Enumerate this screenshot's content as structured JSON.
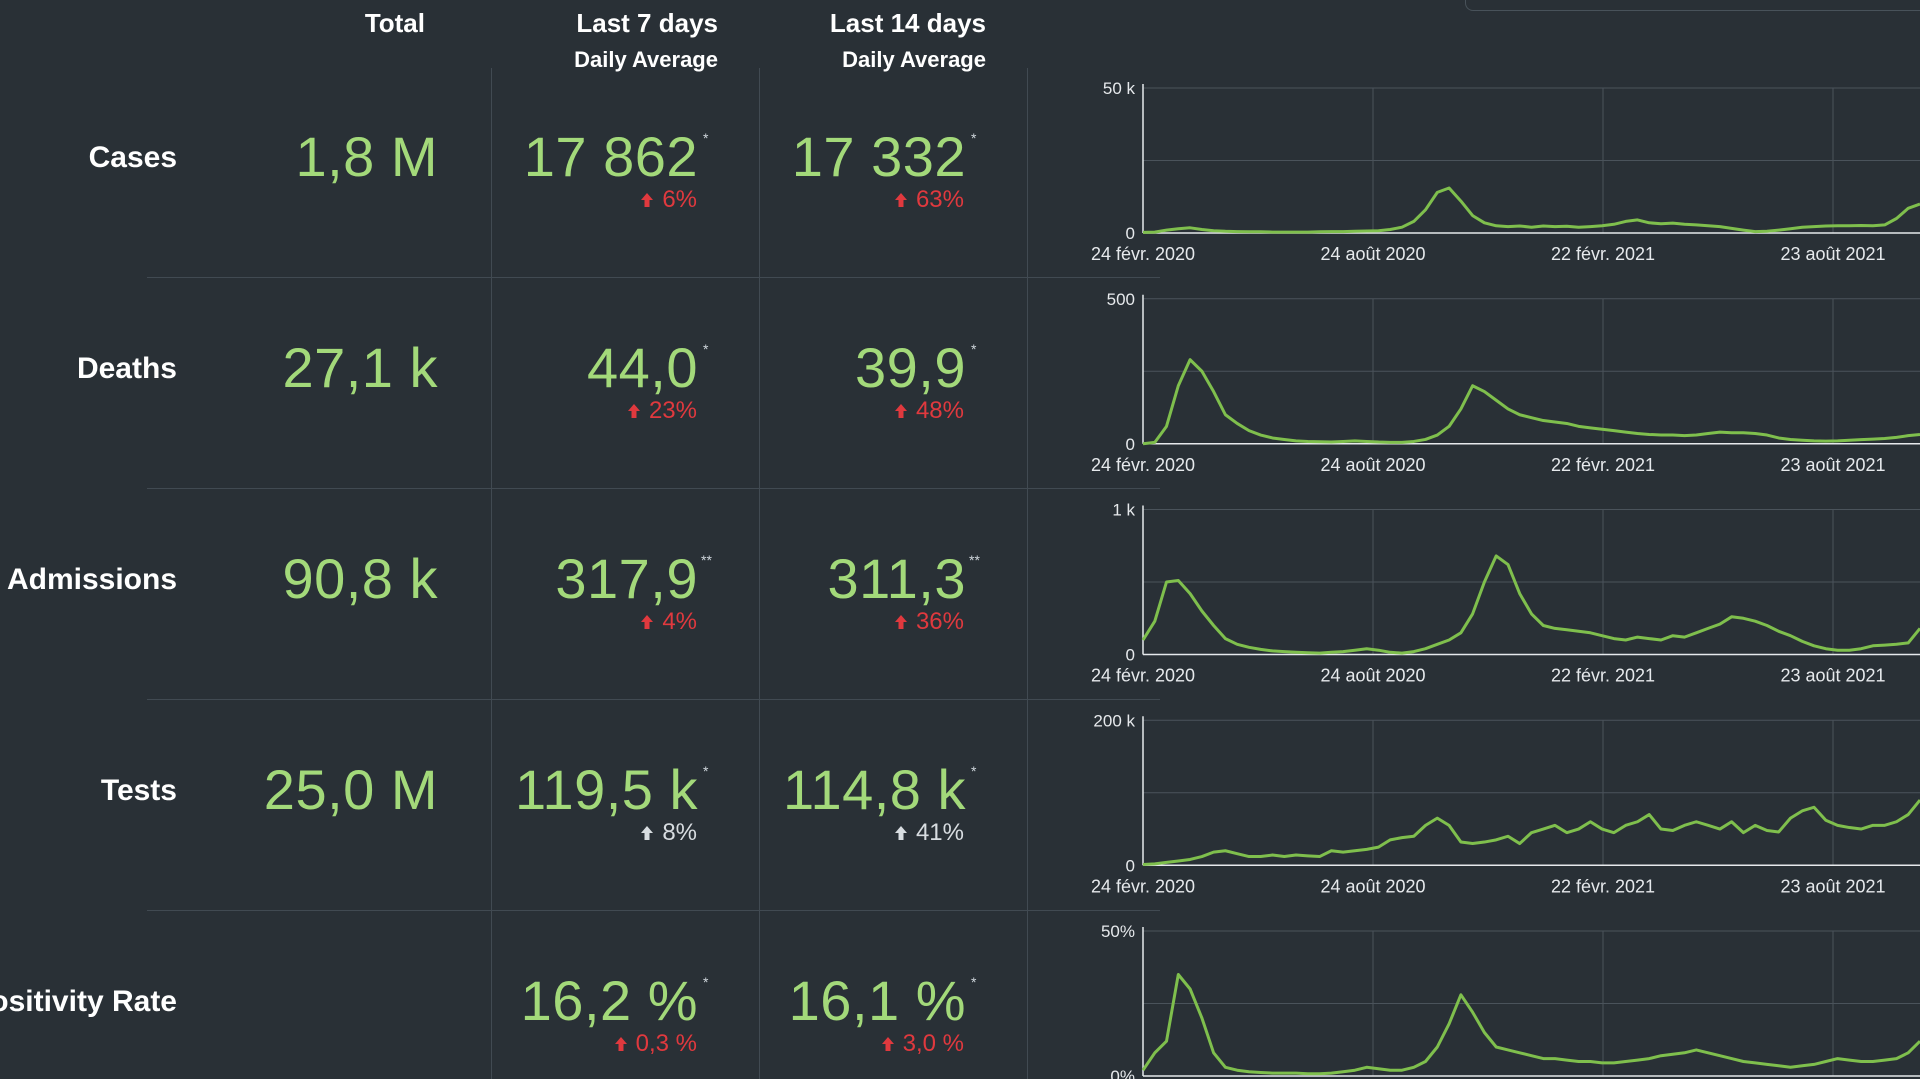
{
  "headers": {
    "total": "Total",
    "last7": "Last 7 days",
    "last7_sub": "Daily Average",
    "last14": "Last 14 days",
    "last14_sub": "Daily Average"
  },
  "rows": [
    {
      "label": "Cases",
      "total": "1,8 M",
      "avg7": "17 862",
      "avg7_mark": "*",
      "chg7": "6%",
      "chg7_color": "red",
      "avg14": "17 332",
      "avg14_mark": "*",
      "chg14": "63%",
      "chg14_color": "red"
    },
    {
      "label": "Deaths",
      "total": "27,1 k",
      "avg7": "44,0",
      "avg7_mark": "*",
      "chg7": "23%",
      "chg7_color": "red",
      "avg14": "39,9",
      "avg14_mark": "*",
      "chg14": "48%",
      "chg14_color": "red"
    },
    {
      "label": "al Admissions",
      "total": "90,8 k",
      "avg7": "317,9",
      "avg7_mark": "**",
      "chg7": "4%",
      "chg7_color": "red",
      "avg14": "311,3",
      "avg14_mark": "**",
      "chg14": "36%",
      "chg14_color": "red"
    },
    {
      "label": "Tests",
      "total": "25,0 M",
      "avg7": "119,5 k",
      "avg7_mark": "*",
      "chg7": "8%",
      "chg7_color": "grey",
      "avg14": "114,8 k",
      "avg14_mark": "*",
      "chg14": "41%",
      "chg14_color": "grey"
    },
    {
      "label": "ositivity Rate",
      "total": "",
      "avg7": "16,2 %",
      "avg7_mark": "*",
      "chg7": "0,3 %",
      "chg7_color": "red",
      "avg14": "16,1 %",
      "avg14_mark": "*",
      "chg14": "3,0 %",
      "chg14_color": "red"
    }
  ],
  "colors": {
    "background": "#293036",
    "value_green": "#a3d97a",
    "line_green": "#7fbf4d",
    "increase_red": "#e0393e",
    "neutral_grey": "#d8dde1"
  },
  "chart_data": [
    {
      "type": "line",
      "series": [
        {
          "values": [
            0.2,
            0.3,
            1.0,
            1.5,
            1.8,
            1.2,
            0.8,
            0.6,
            0.5,
            0.4,
            0.4,
            0.3,
            0.3,
            0.3,
            0.3,
            0.4,
            0.5,
            0.5,
            0.6,
            0.7,
            0.8,
            1.2,
            2,
            4,
            8,
            14,
            15.5,
            11,
            6,
            3.5,
            2.5,
            2.2,
            2.4,
            2.0,
            2.4,
            2.2,
            2.3,
            2.0,
            2.2,
            2.5,
            3.0,
            4.0,
            4.5,
            3.5,
            3.2,
            3.4,
            3.0,
            2.8,
            2.5,
            2.2,
            1.6,
            1.0,
            0.5,
            0.6,
            1.0,
            1.5,
            2.0,
            2.2,
            2.4,
            2.5,
            2.5,
            2.6,
            2.5,
            2.8,
            5,
            8.5,
            10
          ]
        }
      ],
      "y_ticks": [
        "0",
        "50 k"
      ],
      "ylim": [
        0,
        50000
      ],
      "x_ticks": [
        "24 févr. 2020",
        "24 août 2020",
        "22 févr. 2021",
        "23 août 2021"
      ],
      "grid": true
    },
    {
      "type": "line",
      "series": [
        {
          "values": [
            0,
            5,
            60,
            200,
            290,
            250,
            180,
            100,
            70,
            45,
            30,
            20,
            15,
            10,
            8,
            7,
            6,
            8,
            10,
            8,
            6,
            5,
            5,
            8,
            15,
            30,
            60,
            120,
            200,
            180,
            150,
            120,
            100,
            90,
            80,
            75,
            70,
            60,
            55,
            50,
            45,
            40,
            35,
            32,
            30,
            30,
            28,
            30,
            35,
            40,
            38,
            38,
            35,
            30,
            20,
            15,
            12,
            10,
            9,
            10,
            12,
            14,
            16,
            18,
            22,
            28,
            32
          ]
        }
      ],
      "y_ticks": [
        "0",
        "500"
      ],
      "ylim": [
        0,
        500
      ],
      "x_ticks": [
        "24 févr. 2020",
        "24 août 2020",
        "22 févr. 2021",
        "23 août 2021"
      ],
      "grid": true
    },
    {
      "type": "line",
      "series": [
        {
          "values": [
            100,
            230,
            500,
            510,
            420,
            300,
            200,
            110,
            70,
            50,
            35,
            25,
            20,
            15,
            12,
            10,
            15,
            20,
            30,
            40,
            30,
            15,
            10,
            20,
            40,
            70,
            100,
            150,
            280,
            500,
            680,
            620,
            420,
            280,
            200,
            180,
            170,
            160,
            150,
            130,
            110,
            100,
            120,
            110,
            100,
            130,
            120,
            150,
            180,
            210,
            260,
            250,
            230,
            200,
            160,
            130,
            90,
            60,
            40,
            30,
            30,
            40,
            60,
            65,
            70,
            80,
            180
          ]
        }
      ],
      "y_ticks": [
        "0",
        "1 k"
      ],
      "ylim": [
        0,
        1000
      ],
      "x_ticks": [
        "24 févr. 2020",
        "24 août 2020",
        "22 févr. 2021",
        "23 août 2021"
      ],
      "grid": true
    },
    {
      "type": "line",
      "series": [
        {
          "values": [
            1000,
            2000,
            4000,
            6000,
            8000,
            12000,
            18000,
            20000,
            16000,
            12000,
            12000,
            14000,
            12000,
            14000,
            13000,
            12000,
            20000,
            18000,
            20000,
            22000,
            25000,
            35000,
            38000,
            40000,
            55000,
            65000,
            55000,
            32000,
            30000,
            32000,
            35000,
            40000,
            30000,
            45000,
            50000,
            55000,
            45000,
            50000,
            60000,
            50000,
            45000,
            55000,
            60000,
            70000,
            50000,
            48000,
            55000,
            60000,
            55000,
            50000,
            60000,
            45000,
            55000,
            48000,
            46000,
            65000,
            75000,
            80000,
            62000,
            55000,
            52000,
            50000,
            55000,
            55000,
            60000,
            70000,
            90000
          ]
        }
      ],
      "y_ticks": [
        "0",
        "200 k"
      ],
      "ylim": [
        0,
        200000
      ],
      "x_ticks": [
        "24 févr. 2020",
        "24 août 2020",
        "22 févr. 2021",
        "23 août 2021"
      ],
      "grid": true
    },
    {
      "type": "line",
      "series": [
        {
          "values": [
            2,
            8,
            12,
            35,
            30,
            20,
            8,
            3,
            2,
            1.5,
            1.2,
            1,
            1,
            1,
            0.8,
            0.8,
            1,
            1.5,
            2,
            3,
            2.5,
            2,
            2,
            3,
            5,
            10,
            18,
            28,
            22,
            15,
            10,
            9,
            8,
            7,
            6,
            6,
            5.5,
            5,
            5,
            4.5,
            4.5,
            5,
            5.5,
            6,
            7,
            7.5,
            8,
            9,
            8,
            7,
            6,
            5,
            4.5,
            4,
            3.5,
            3,
            3.5,
            4,
            5,
            6,
            5.5,
            5,
            5,
            5.5,
            6,
            8,
            12
          ]
        }
      ],
      "y_ticks": [
        "0%",
        "50%"
      ],
      "ylim": [
        0,
        50
      ],
      "x_ticks": [],
      "grid": true
    }
  ]
}
